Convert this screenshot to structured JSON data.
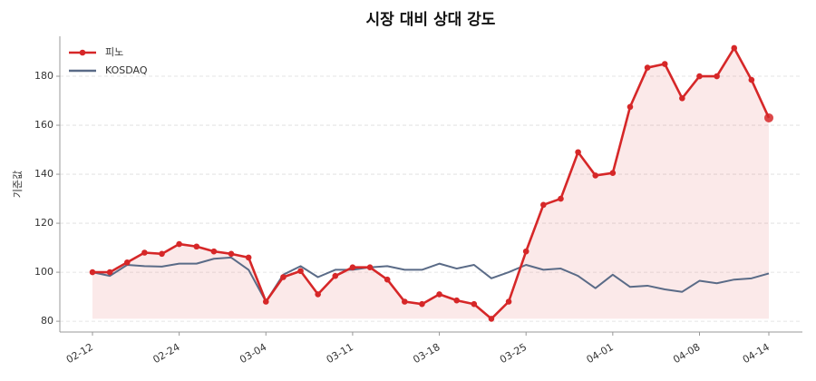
{
  "chart_data": {
    "type": "line",
    "title": "시장 대비 상대 강도",
    "y_label": "기준값",
    "categories": [
      "02-12",
      null,
      null,
      null,
      null,
      "02-24",
      null,
      null,
      null,
      null,
      "03-04",
      null,
      null,
      null,
      null,
      "03-11",
      null,
      null,
      null,
      null,
      "03-18",
      null,
      null,
      null,
      null,
      "03-25",
      null,
      null,
      null,
      null,
      "04-01",
      null,
      null,
      null,
      null,
      "04-08",
      null,
      null,
      null,
      "04-14"
    ],
    "series": [
      {
        "name": "피노",
        "color": "#d62728",
        "fill": true,
        "markers": true,
        "values": [
          100,
          100,
          104,
          108,
          107.5,
          111.5,
          110.5,
          108.5,
          107.5,
          106,
          88,
          98,
          100.5,
          91,
          98.5,
          102,
          102,
          97,
          88,
          87,
          91,
          88.5,
          87,
          81,
          88,
          108.5,
          127.5,
          130,
          149,
          139.5,
          140.5,
          167.5,
          183.5,
          185,
          171,
          180,
          180,
          191.5,
          178.5,
          163
        ]
      },
      {
        "name": "KOSDAQ",
        "color": "#5a6b87",
        "fill": false,
        "markers": false,
        "values": [
          100,
          98.5,
          103,
          102.5,
          102.3,
          103.5,
          103.5,
          105.5,
          106,
          101,
          88,
          99,
          102.5,
          98,
          101,
          101,
          102,
          102.5,
          101,
          101,
          103.5,
          101.5,
          103,
          97.5,
          100,
          103,
          101,
          101.5,
          98.5,
          93.5,
          99,
          94,
          94.5,
          93,
          92,
          96.5,
          95.5,
          97,
          97.5,
          99.5
        ]
      }
    ],
    "ylim": [
      75.6,
      196.3
    ],
    "yticks": [
      80,
      100,
      120,
      140,
      160,
      180
    ],
    "grid": true,
    "legend": "upper left"
  }
}
